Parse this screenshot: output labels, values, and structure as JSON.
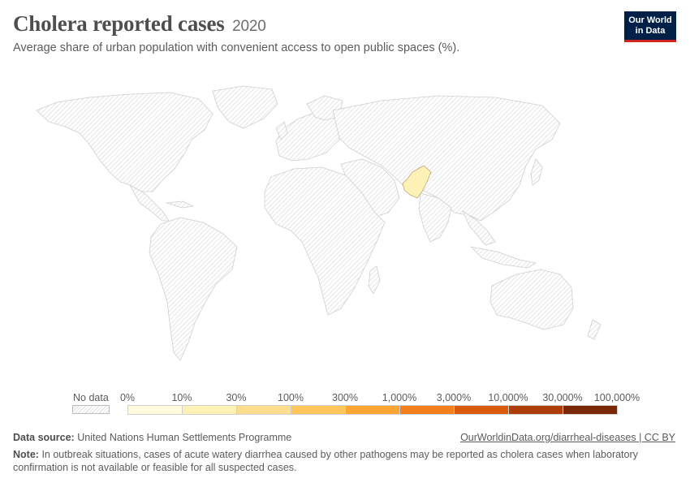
{
  "header": {
    "title": "Cholera reported cases",
    "year": "2020",
    "subtitle": "Average share of urban population with convenient access to open public spaces (%)."
  },
  "logo": {
    "line1": "Our World",
    "line2": "in Data"
  },
  "colors": {
    "no_data_fill": "#ffffff",
    "hatch": "#dedede",
    "border": "#cfcfcf",
    "pakistan": "#fdf1b6",
    "logo_bg": "#002147",
    "logo_accent": "#ce261e"
  },
  "map": {
    "highlighted_country": "Pakistan",
    "highlighted_bin": "10%–30%"
  },
  "legend": {
    "no_data_label": "No data",
    "ticks": [
      "0%",
      "10%",
      "30%",
      "100%",
      "300%",
      "1,000%",
      "3,000%",
      "10,000%",
      "30,000%",
      "100,000%"
    ],
    "bin_colors": [
      "#fffbdc",
      "#fdf1b6",
      "#fede8e",
      "#fec55a",
      "#fca532",
      "#f47f1c",
      "#db5b0e",
      "#ae3d0a",
      "#7a2707"
    ]
  },
  "footer": {
    "source_label": "Data source:",
    "source_text": "United Nations Human Settlements Programme",
    "url_text": "OurWorldinData.org/diarrheal-diseases | CC BY",
    "note_label": "Note:",
    "note_text": "In outbreak situations, cases of acute watery diarrhea caused by other pathogens may be reported as cholera cases when laboratory confirmation is not available or feasible for all suspected cases."
  }
}
